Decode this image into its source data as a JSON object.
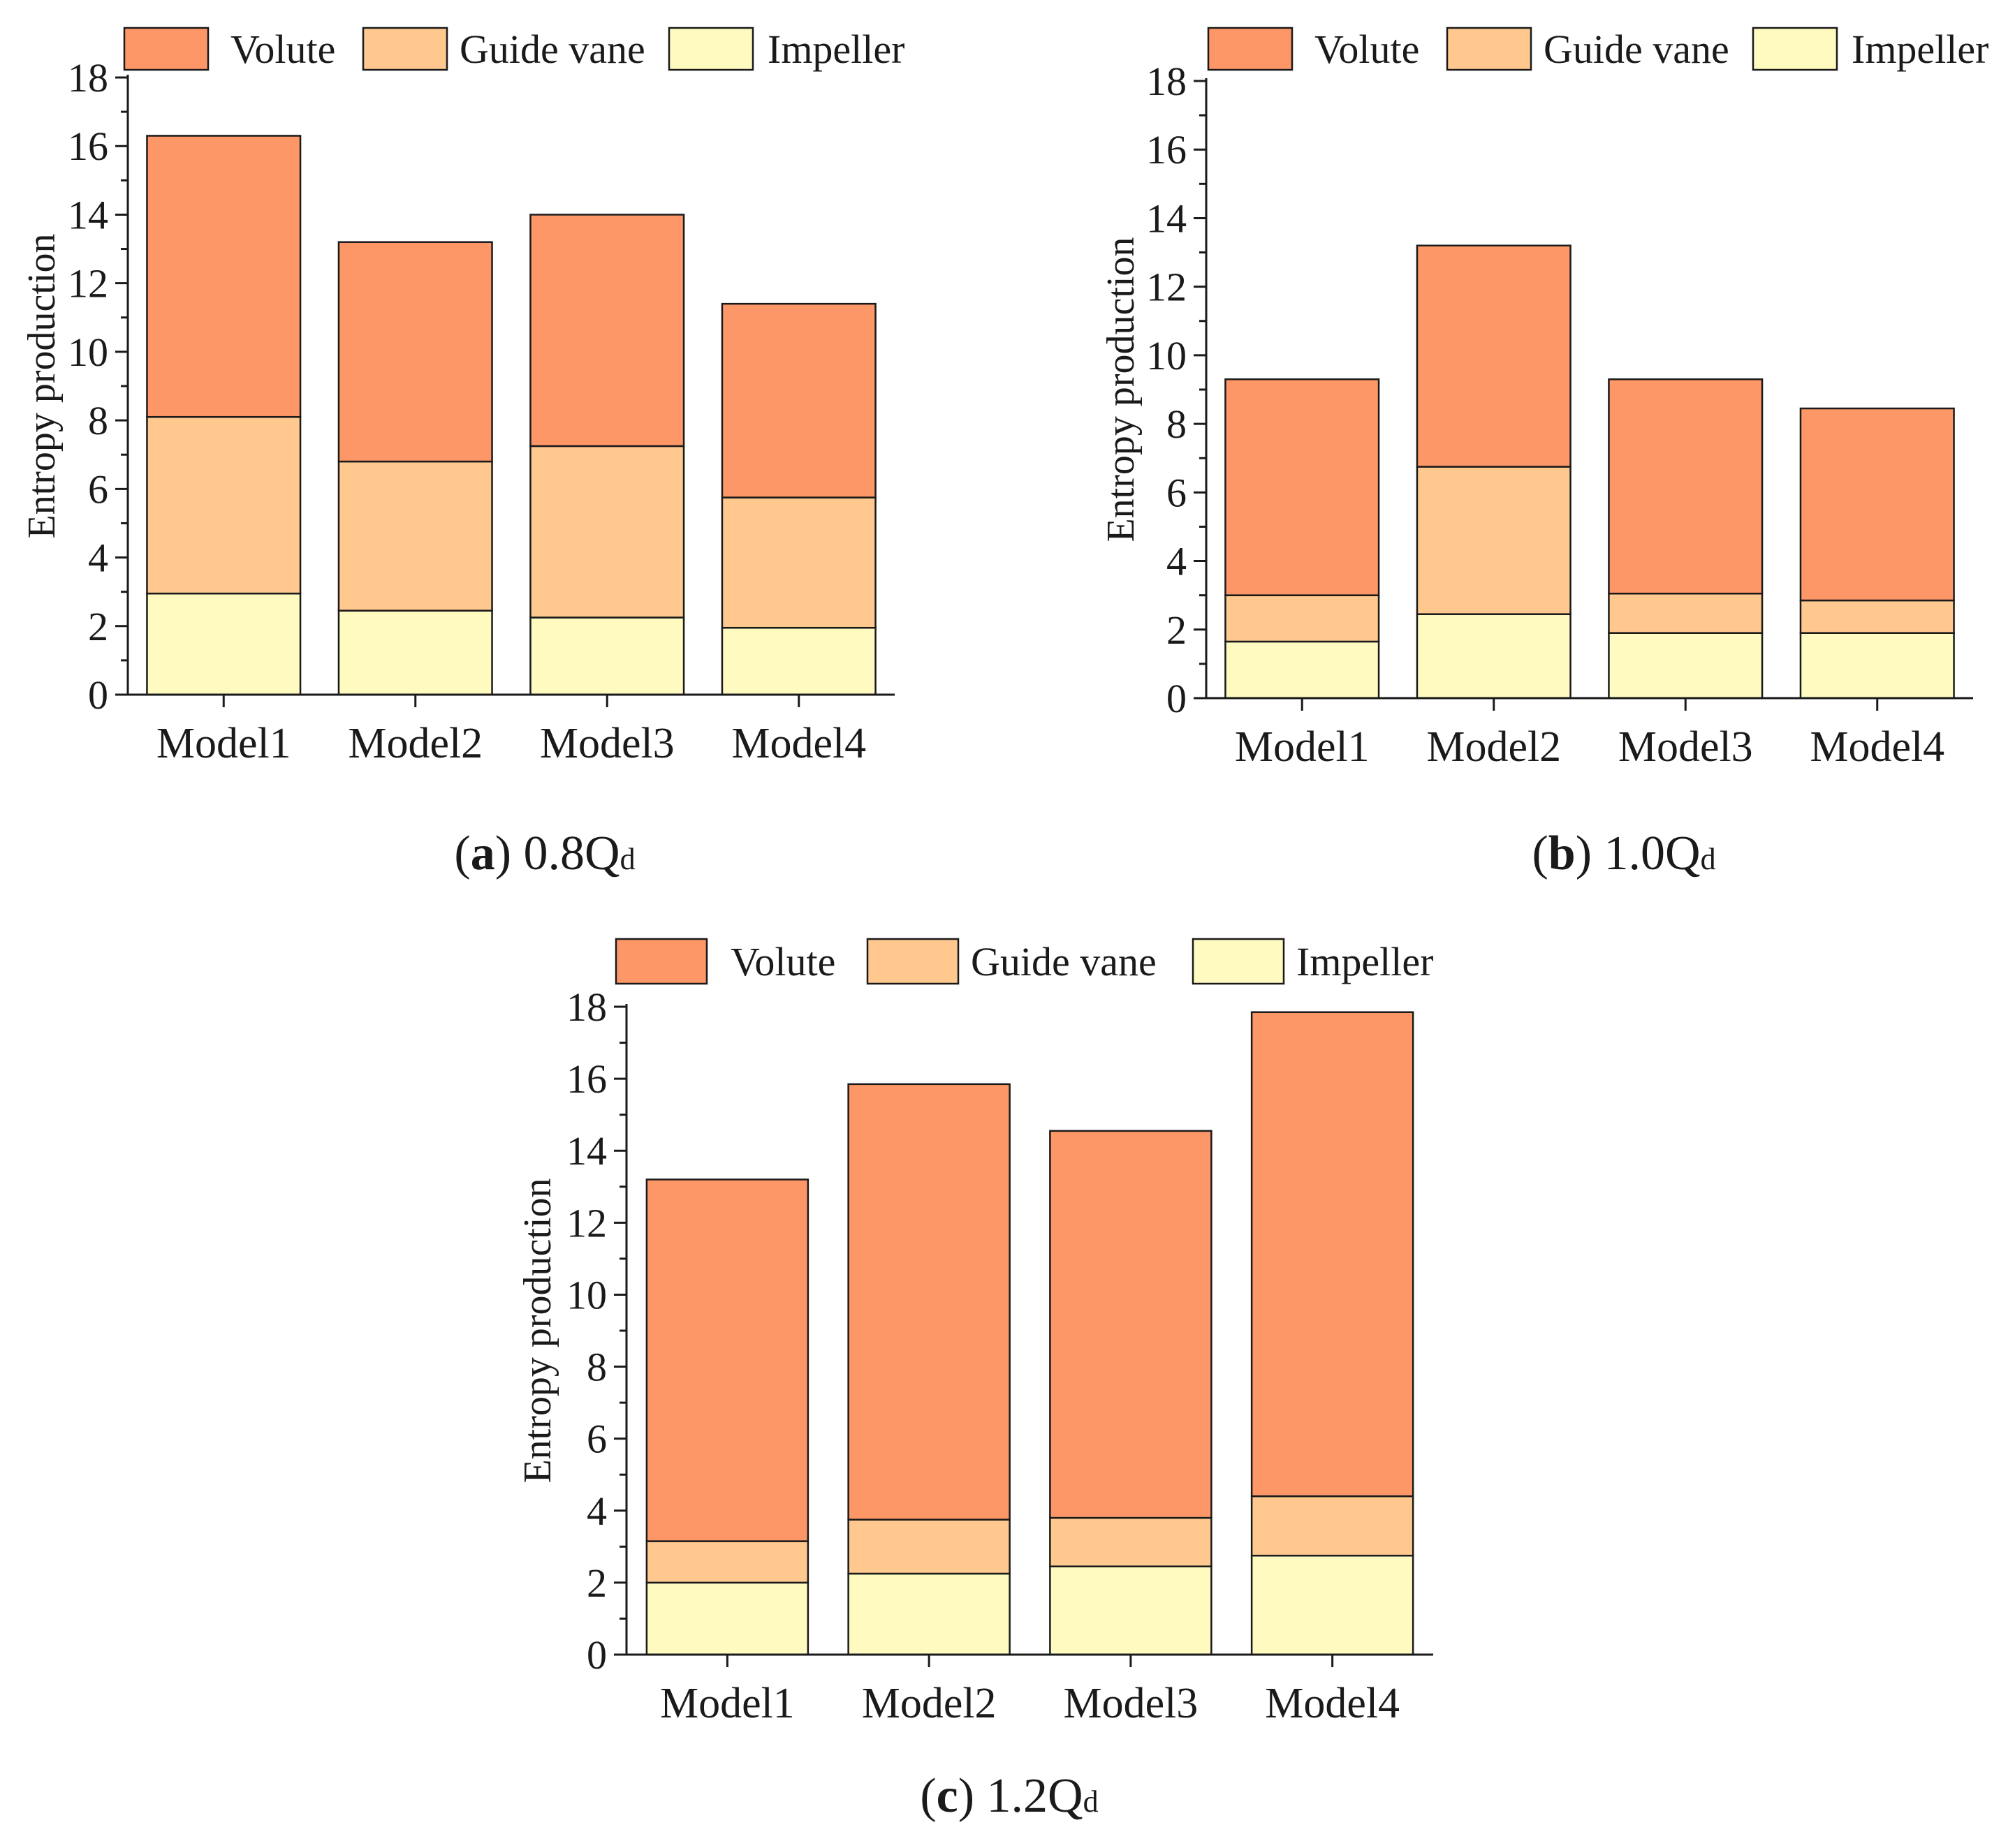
{
  "figure": {
    "colors": {
      "volute": "#fe9767",
      "guide_vane": "#fec88f",
      "impeller": "#fefac0",
      "axis": "#1a1a1a"
    }
  },
  "chart_data": [
    {
      "id": "a",
      "type": "bar",
      "stacked": true,
      "caption_letter": "a",
      "caption_value": "0.8Q",
      "caption_sub": "d",
      "title": "(a) 0.8Qd",
      "xlabel": "",
      "ylabel": "Entropy production",
      "ylim": [
        0,
        18
      ],
      "yticks": [
        0,
        2,
        4,
        6,
        8,
        10,
        12,
        14,
        16,
        18
      ],
      "categories": [
        "Model1",
        "Model2",
        "Model3",
        "Model4"
      ],
      "legend": [
        "Volute",
        "Guide vane",
        "Impeller"
      ],
      "legend_position": "top",
      "series": [
        {
          "name": "Impeller",
          "values": [
            2.95,
            2.45,
            2.25,
            1.95
          ]
        },
        {
          "name": "Guide vane",
          "values": [
            5.15,
            4.35,
            5.0,
            3.8
          ]
        },
        {
          "name": "Volute",
          "values": [
            8.2,
            6.4,
            6.75,
            5.65
          ]
        }
      ]
    },
    {
      "id": "b",
      "type": "bar",
      "stacked": true,
      "caption_letter": "b",
      "caption_value": "1.0Q",
      "caption_sub": "d",
      "title": "(b) 1.0Qd",
      "xlabel": "",
      "ylabel": "Entropy production",
      "ylim": [
        0,
        18
      ],
      "yticks": [
        0,
        2,
        4,
        6,
        8,
        10,
        12,
        14,
        16,
        18
      ],
      "categories": [
        "Model1",
        "Model2",
        "Model3",
        "Model4"
      ],
      "legend": [
        "Volute",
        "Guide vane",
        "Impeller"
      ],
      "legend_position": "top",
      "series": [
        {
          "name": "Impeller",
          "values": [
            1.65,
            2.45,
            1.9,
            1.9
          ]
        },
        {
          "name": "Guide vane",
          "values": [
            1.35,
            4.3,
            1.15,
            0.95
          ]
        },
        {
          "name": "Volute",
          "values": [
            6.3,
            6.45,
            6.25,
            5.6
          ]
        }
      ]
    },
    {
      "id": "c",
      "type": "bar",
      "stacked": true,
      "caption_letter": "c",
      "caption_value": "1.2Q",
      "caption_sub": "d",
      "title": "(c) 1.2Qd",
      "xlabel": "",
      "ylabel": "Entropy production",
      "ylim": [
        0,
        18
      ],
      "yticks": [
        0,
        2,
        4,
        6,
        8,
        10,
        12,
        14,
        16,
        18
      ],
      "categories": [
        "Model1",
        "Model2",
        "Model3",
        "Model4"
      ],
      "legend": [
        "Volute",
        "Guide vane",
        "Impeller"
      ],
      "legend_position": "top",
      "series": [
        {
          "name": "Impeller",
          "values": [
            2.0,
            2.25,
            2.45,
            2.75
          ]
        },
        {
          "name": "Guide vane",
          "values": [
            1.15,
            1.5,
            1.35,
            1.65
          ]
        },
        {
          "name": "Volute",
          "values": [
            10.05,
            12.1,
            10.75,
            13.45
          ]
        }
      ]
    }
  ]
}
